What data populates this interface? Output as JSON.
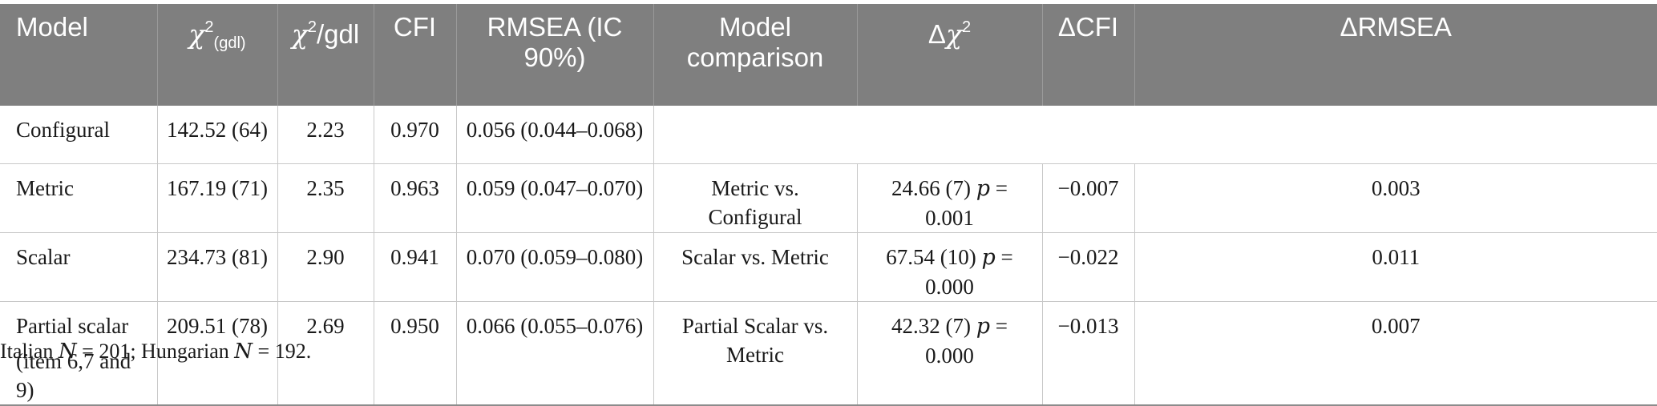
{
  "headers": {
    "model": "Model",
    "chi2_sym": "χ",
    "chi2_sup": "2",
    "chi2_sub": "(gdl)",
    "chi2gdl_sym": "χ",
    "chi2gdl_sup": "2",
    "chi2gdl_rest": "/gdl",
    "cfi": "CFI",
    "rmsea": "RMSEA (IC 90%)",
    "comparison": "Model comparison",
    "dchi_pre": "Δ",
    "dchi_sym": "χ",
    "dchi_sup": "2",
    "dcfi": "ΔCFI",
    "drmsea": "ΔRMSEA"
  },
  "rows": [
    {
      "model": "Configural",
      "chi2": "142.52 (64)",
      "chi2gdl": "2.23",
      "cfi": "0.970",
      "rmsea": "0.056 (0.044–0.068)",
      "comparison": "",
      "dchi_val": "",
      "p_label": "",
      "p_val": "",
      "dcfi": "",
      "drmsea": ""
    },
    {
      "model": "Metric",
      "chi2": "167.19 (71)",
      "chi2gdl": "2.35",
      "cfi": "0.963",
      "rmsea": "0.059 (0.047–0.070)",
      "comparison": "Metric vs. Configural",
      "dchi_val": "24.66 (7)",
      "p_label": "p",
      "p_val": " = 0.001",
      "dcfi": "−0.007",
      "drmsea": "0.003"
    },
    {
      "model": "Scalar",
      "chi2": "234.73 (81)",
      "chi2gdl": "2.90",
      "cfi": "0.941",
      "rmsea": "0.070 (0.059–0.080)",
      "comparison": "Scalar vs. Metric",
      "dchi_val": "67.54 (10)",
      "p_label": "p",
      "p_val": " = 0.000",
      "dcfi": "−0.022",
      "drmsea": "0.011"
    },
    {
      "model_line1": "Partial scalar",
      "model_line2": "(item 6,7 and 9)",
      "chi2": "209.51 (78)",
      "chi2gdl": "2.69",
      "cfi": "0.950",
      "rmsea": "0.066 (0.055–0.076)",
      "comparison": "Partial Scalar vs. Metric",
      "dchi_val": "42.32 (7)",
      "p_label": "p",
      "p_val": " = 0.000",
      "dcfi": "−0.013",
      "drmsea": "0.007"
    }
  ],
  "footnote": {
    "it_label": "Italian ",
    "it_n": "N",
    "it_val": " = 201; Hungarian ",
    "hu_n": "N",
    "hu_val": " = 192."
  }
}
